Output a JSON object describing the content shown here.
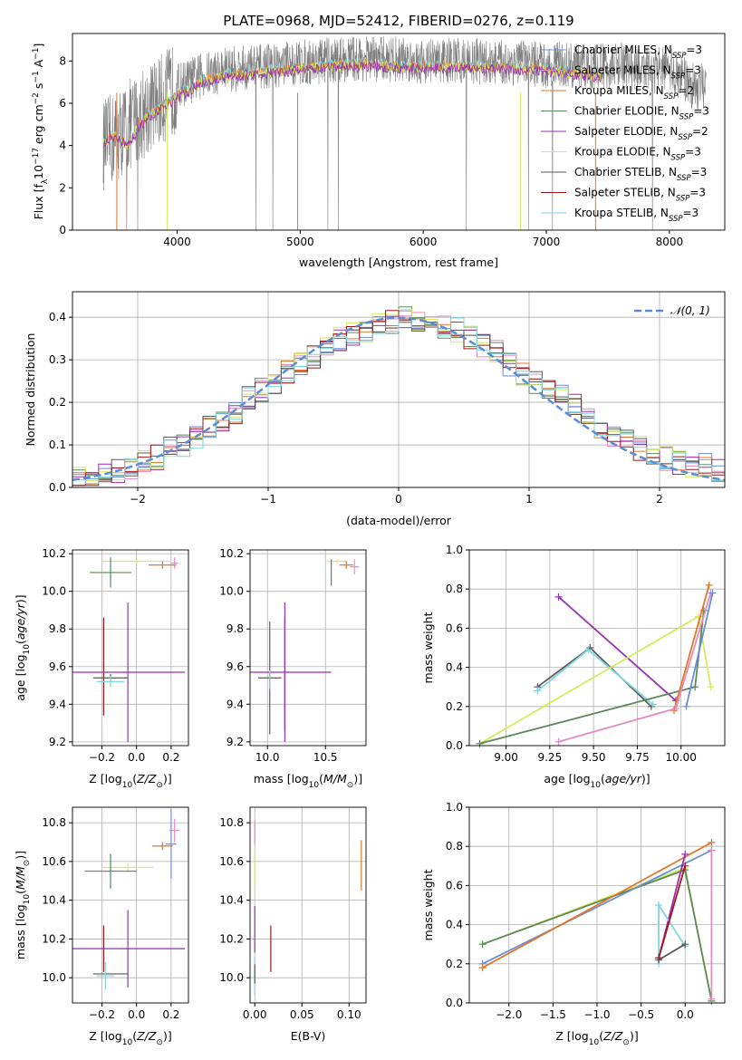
{
  "figure_title": "PLATE=0968, MJD=52412, FIBERID=0276, z=0.119",
  "colors": {
    "Chabrier MILES": "#6a8fd9",
    "Salpeter MILES": "#e58bc2",
    "Kroupa MILES": "#e2772a",
    "Chabrier ELODIE": "#5a8a5a",
    "Salpeter ELODIE": "#9a2fb4",
    "Kroupa ELODIE": "#d4ec5a",
    "Chabrier STELIB": "#5a5a5a",
    "Salpeter STELIB": "#a01818",
    "Kroupa STELIB": "#7ed6e0",
    "gaussian": "#5d8bd6"
  },
  "chart_data": [
    {
      "id": "spectrum",
      "type": "line",
      "title": "PLATE=0968, MJD=52412, FIBERID=0276, z=0.119",
      "xlabel": "wavelength [Angstrom, rest frame]",
      "ylabel": "Flux [f_λ 10^-17 erg cm^-2 s^-1 A^-1]",
      "xlim": [
        3150,
        8450
      ],
      "ylim": [
        0,
        9.3
      ],
      "xticks": [
        4000,
        5000,
        6000,
        7000,
        8000
      ],
      "yticks": [
        0,
        2,
        4,
        6,
        8
      ],
      "legend_position": "right",
      "data_x": [
        3400,
        3500,
        3600,
        3700,
        3800,
        3900,
        4000,
        4200,
        4400,
        4600,
        4800,
        5000,
        5200,
        5400,
        5600,
        5800,
        6000,
        6200,
        6400,
        6600,
        6800,
        7000,
        7200,
        7400,
        7600,
        7800,
        8000,
        8200
      ],
      "data_y": [
        4.0,
        4.4,
        4.9,
        5.4,
        5.9,
        6.3,
        6.8,
        7.3,
        7.6,
        7.7,
        7.8,
        7.9,
        8.0,
        8.1,
        8.1,
        8.1,
        8.0,
        8.0,
        8.0,
        7.9,
        7.9,
        7.8,
        7.8,
        7.7,
        7.8,
        7.5,
        7.6,
        6.8
      ],
      "model_x": [
        3400,
        3500,
        3600,
        3700,
        3800,
        3900,
        4000,
        4200,
        4400,
        4600,
        4800,
        5000,
        5200,
        5400,
        5600,
        5800,
        6000,
        6200,
        6400,
        6600,
        6800,
        7000,
        7200,
        7400
      ],
      "model_y": [
        4.2,
        4.5,
        4.1,
        5.1,
        5.6,
        6.0,
        6.4,
        7.1,
        7.4,
        7.5,
        7.6,
        7.7,
        7.8,
        7.9,
        7.9,
        7.8,
        7.8,
        7.8,
        7.8,
        7.8,
        7.7,
        7.7,
        7.5,
        7.4
      ],
      "series": [
        {
          "name": "Chabrier MILES, N_SSP=3"
        },
        {
          "name": "Salpeter MILES, N_SSP=3"
        },
        {
          "name": "Kroupa MILES, N_SSP=2"
        },
        {
          "name": "Chabrier ELODIE, N_SSP=3"
        },
        {
          "name": "Salpeter ELODIE, N_SSP=2"
        },
        {
          "name": "Kroupa ELODIE, N_SSP=3"
        },
        {
          "name": "Chabrier STELIB, N_SSP=3"
        },
        {
          "name": "Salpeter STELIB, N_SSP=3"
        },
        {
          "name": "Kroupa STELIB, N_SSP=3"
        }
      ]
    },
    {
      "id": "residuals",
      "type": "line",
      "xlabel": "(data-model)/error",
      "ylabel": "Normed distribution",
      "xlim": [
        -2.5,
        2.5
      ],
      "ylim": [
        0,
        0.46
      ],
      "xticks": [
        -2,
        -1,
        0,
        1,
        2
      ],
      "yticks": [
        0.0,
        0.1,
        0.2,
        0.3,
        0.4
      ],
      "grid": true,
      "legend": "𝒩(0, 1)",
      "legend_position": "top-right",
      "bin_width": 0.1,
      "bin_start": -2.5,
      "reference_hist": [
        0.02,
        0.02,
        0.03,
        0.04,
        0.05,
        0.06,
        0.07,
        0.09,
        0.1,
        0.12,
        0.14,
        0.16,
        0.18,
        0.21,
        0.23,
        0.25,
        0.27,
        0.29,
        0.31,
        0.33,
        0.35,
        0.36,
        0.37,
        0.38,
        0.39,
        0.4,
        0.39,
        0.39,
        0.38,
        0.37,
        0.35,
        0.33,
        0.32,
        0.29,
        0.27,
        0.25,
        0.23,
        0.21,
        0.19,
        0.16,
        0.14,
        0.12,
        0.11,
        0.09,
        0.08,
        0.07,
        0.06,
        0.05,
        0.05,
        0.04
      ]
    },
    {
      "id": "age-vs-z",
      "type": "scatter",
      "xlabel": "Z [log10(Z/Z⊙)]",
      "ylabel": "age [log10(age/yr)]",
      "xlim": [
        -0.37,
        0.3
      ],
      "ylim": [
        9.18,
        10.22
      ],
      "xticks": [
        -0.2,
        0.0,
        0.2
      ],
      "yticks": [
        9.2,
        9.4,
        9.6,
        9.8,
        10.0,
        10.2
      ],
      "grid": true,
      "points": [
        {
          "s": "Kroupa ELODIE",
          "x": 0.0,
          "y": 10.16,
          "xerr": 0.2,
          "yerr": 0.01
        },
        {
          "s": "Kroupa MILES",
          "x": 0.15,
          "y": 10.14,
          "xerr": 0.08,
          "yerr": 0.02
        },
        {
          "s": "Salpeter MILES",
          "x": 0.22,
          "y": 10.15,
          "xerr": 0.02,
          "yerr": 0.03
        },
        {
          "s": "Chabrier ELODIE",
          "x": -0.15,
          "y": 10.1,
          "xerr": 0.12,
          "yerr": 0.08
        },
        {
          "s": "Salpeter STELIB",
          "x": -0.19,
          "y": 9.6,
          "xerr": 0.0,
          "yerr": 0.26
        },
        {
          "s": "Salpeter ELODIE",
          "x": -0.05,
          "y": 9.57,
          "xerr": 0.33,
          "yerr": 0.37
        },
        {
          "s": "Chabrier STELIB",
          "x": -0.15,
          "y": 9.54,
          "xerr": 0.1,
          "yerr": 0.02
        },
        {
          "s": "Kroupa STELIB",
          "x": -0.15,
          "y": 9.52,
          "xerr": 0.08,
          "yerr": 0.03
        }
      ]
    },
    {
      "id": "age-vs-mass",
      "type": "scatter",
      "xlabel": "mass [log10(M/M⊙)]",
      "ylabel": "",
      "xlim": [
        9.85,
        10.85
      ],
      "ylim": [
        9.18,
        10.22
      ],
      "xticks": [
        10.0,
        10.5
      ],
      "yticks": [
        9.2,
        9.4,
        9.6,
        9.8,
        10.0,
        10.2
      ],
      "grid": true,
      "points": [
        {
          "s": "Kroupa ELODIE",
          "x": 10.6,
          "y": 10.16,
          "xerr": 0.08,
          "yerr": 0.01
        },
        {
          "s": "Kroupa MILES",
          "x": 10.68,
          "y": 10.14,
          "xerr": 0.06,
          "yerr": 0.02
        },
        {
          "s": "Salpeter MILES",
          "x": 10.75,
          "y": 10.13,
          "xerr": 0.04,
          "yerr": 0.04
        },
        {
          "s": "Chabrier ELODIE",
          "x": 10.55,
          "y": 10.1,
          "xerr": 0.0,
          "yerr": 0.07
        },
        {
          "s": "Salpeter STELIB",
          "x": 10.15,
          "y": 9.56,
          "xerr": 0.0,
          "yerr": 0.3
        },
        {
          "s": "Salpeter ELODIE",
          "x": 10.15,
          "y": 9.57,
          "xerr": 0.4,
          "yerr": 0.37
        },
        {
          "s": "Chabrier STELIB",
          "x": 10.02,
          "y": 9.54,
          "xerr": 0.1,
          "yerr": 0.3
        },
        {
          "s": "Kroupa STELIB",
          "x": 10.02,
          "y": 9.53,
          "xerr": 0.0,
          "yerr": 0.05
        }
      ]
    },
    {
      "id": "weight-vs-age",
      "type": "line",
      "xlabel": "age [log10(age/yr)]",
      "ylabel": "mass weight",
      "xlim": [
        8.79,
        10.25
      ],
      "ylim": [
        0,
        1
      ],
      "xticks": [
        9.0,
        9.25,
        9.5,
        9.75,
        10.0
      ],
      "yticks": [
        0.0,
        0.2,
        0.4,
        0.6,
        0.8,
        1.0
      ],
      "grid": true,
      "series": [
        {
          "s": "Salpeter ELODIE",
          "x": [
            9.3,
            9.97
          ],
          "y": [
            0.76,
            0.23
          ]
        },
        {
          "s": "Chabrier STELIB",
          "x": [
            9.18,
            9.48,
            9.83
          ],
          "y": [
            0.3,
            0.5,
            0.2
          ]
        },
        {
          "s": "Kroupa STELIB",
          "x": [
            9.18,
            9.47,
            9.84
          ],
          "y": [
            0.28,
            0.49,
            0.21
          ]
        },
        {
          "s": "Kroupa ELODIE",
          "x": [
            8.85,
            10.1,
            10.17
          ],
          "y": [
            0.01,
            0.66,
            0.3
          ]
        },
        {
          "s": "Chabrier ELODIE",
          "x": [
            8.85,
            10.08,
            10.13
          ],
          "y": [
            0.01,
            0.3,
            0.69
          ]
        },
        {
          "s": "Kroupa MILES",
          "x": [
            9.96,
            10.16
          ],
          "y": [
            0.18,
            0.82
          ]
        },
        {
          "s": "Salpeter MILES",
          "x": [
            9.3,
            9.97,
            10.17
          ],
          "y": [
            0.02,
            0.19,
            0.78
          ]
        },
        {
          "s": "Chabrier MILES",
          "x": [
            10.03,
            10.18
          ],
          "y": [
            0.2,
            0.78
          ]
        }
      ]
    },
    {
      "id": "mass-vs-z",
      "type": "scatter",
      "xlabel": "Z [log10(Z/Z⊙)]",
      "ylabel": "mass [log10(M/M⊙)]",
      "xlim": [
        -0.37,
        0.3
      ],
      "ylim": [
        9.87,
        10.88
      ],
      "xticks": [
        -0.2,
        0.0,
        0.2
      ],
      "yticks": [
        10.0,
        10.2,
        10.4,
        10.6,
        10.8
      ],
      "grid": true,
      "points": [
        {
          "s": "Salpeter MILES",
          "x": 0.22,
          "y": 10.76,
          "xerr": 0.03,
          "yerr": 0.06
        },
        {
          "s": "Chabrier MILES",
          "x": 0.2,
          "y": 10.69,
          "xerr": 0.03,
          "yerr": 0.18
        },
        {
          "s": "Kroupa MILES",
          "x": 0.15,
          "y": 10.68,
          "xerr": 0.06,
          "yerr": 0.02
        },
        {
          "s": "Kroupa ELODIE",
          "x": -0.05,
          "y": 10.57,
          "xerr": 0.15,
          "yerr": 0.02
        },
        {
          "s": "Chabrier ELODIE",
          "x": -0.15,
          "y": 10.55,
          "xerr": 0.15,
          "yerr": 0.09
        },
        {
          "s": "Salpeter STELIB",
          "x": -0.19,
          "y": 10.15,
          "xerr": 0.0,
          "yerr": 0.12
        },
        {
          "s": "Salpeter ELODIE",
          "x": -0.05,
          "y": 10.15,
          "xerr": 0.33,
          "yerr": 0.2
        },
        {
          "s": "Chabrier STELIB",
          "x": -0.15,
          "y": 10.02,
          "xerr": 0.1,
          "yerr": 0.0
        },
        {
          "s": "Kroupa STELIB",
          "x": -0.18,
          "y": 10.01,
          "xerr": 0.05,
          "yerr": 0.07
        }
      ]
    },
    {
      "id": "mass-vs-ebv",
      "type": "scatter",
      "xlabel": "E(B-V)",
      "ylabel": "",
      "xlim": [
        -0.005,
        0.118
      ],
      "ylim": [
        9.87,
        10.88
      ],
      "xticks": [
        0.0,
        0.05,
        0.1
      ],
      "yticks": [
        10.0,
        10.2,
        10.4,
        10.6,
        10.8
      ],
      "grid": true,
      "points": [
        {
          "s": "Salpeter MILES",
          "x": 0.0,
          "y": 10.75,
          "xerr": 0.0,
          "yerr": 0.06
        },
        {
          "s": "Kroupa ELODIE",
          "x": 0.0,
          "y": 10.55,
          "xerr": 0.0,
          "yerr": 0.1
        },
        {
          "s": "Kroupa MILES",
          "x": 0.113,
          "y": 10.58,
          "xerr": 0.0,
          "yerr": 0.13
        },
        {
          "s": "Salpeter ELODIE",
          "x": 0.0,
          "y": 10.25,
          "xerr": 0.0,
          "yerr": 0.12
        },
        {
          "s": "Salpeter STELIB",
          "x": 0.017,
          "y": 10.15,
          "xerr": 0.0,
          "yerr": 0.12
        },
        {
          "s": "Kroupa STELIB",
          "x": 0.0,
          "y": 10.01,
          "xerr": 0.0,
          "yerr": 0.1
        },
        {
          "s": "Chabrier STELIB",
          "x": 0.0,
          "y": 10.02,
          "xerr": 0.0,
          "yerr": 0.05
        }
      ]
    },
    {
      "id": "weight-vs-z",
      "type": "line",
      "xlabel": "Z [log10(Z/Z⊙)]",
      "ylabel": "mass weight",
      "xlim": [
        -2.45,
        0.45
      ],
      "ylim": [
        0,
        1
      ],
      "xticks": [
        -2.0,
        -1.5,
        -1.0,
        -0.5,
        0.0
      ],
      "yticks": [
        0.0,
        0.2,
        0.4,
        0.6,
        0.8,
        1.0
      ],
      "grid": true,
      "series": [
        {
          "s": "Kroupa ELODIE",
          "x": [
            -2.3,
            0.0,
            0.3
          ],
          "y": [
            0.3,
            0.69,
            0.01
          ]
        },
        {
          "s": "Chabrier ELODIE",
          "x": [
            -2.3,
            0.0,
            0.3
          ],
          "y": [
            0.3,
            0.68,
            0.01
          ]
        },
        {
          "s": "Chabrier MILES",
          "x": [
            -2.3,
            0.3
          ],
          "y": [
            0.2,
            0.78
          ]
        },
        {
          "s": "Kroupa MILES",
          "x": [
            -2.3,
            0.3
          ],
          "y": [
            0.18,
            0.82
          ]
        },
        {
          "s": "Salpeter MILES",
          "x": [
            0.3,
            0.3
          ],
          "y": [
            0.02,
            0.78
          ]
        },
        {
          "s": "Salpeter ELODIE",
          "x": [
            -0.3,
            0.0
          ],
          "y": [
            0.23,
            0.76
          ]
        },
        {
          "s": "Kroupa STELIB",
          "x": [
            -0.3,
            -0.3,
            0.0
          ],
          "y": [
            0.2,
            0.5,
            0.29
          ]
        },
        {
          "s": "Chabrier STELIB",
          "x": [
            -0.3,
            0.0
          ],
          "y": [
            0.22,
            0.3
          ]
        },
        {
          "s": "Salpeter STELIB",
          "x": [
            -0.3,
            0.0
          ],
          "y": [
            0.23,
            0.7
          ]
        }
      ]
    }
  ]
}
